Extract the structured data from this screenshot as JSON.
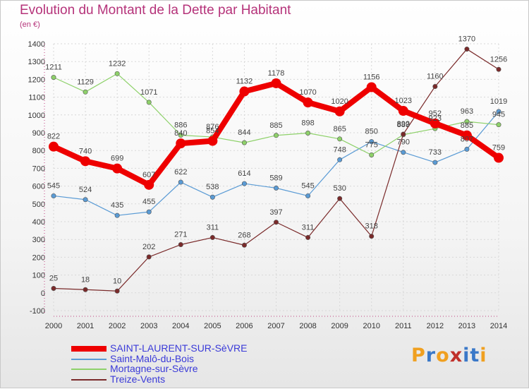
{
  "title": "Evolution du Montant de la Dette par Habitant",
  "unit_label": "(en €)",
  "logo": {
    "text": "Proxiti",
    "colors": [
      "#f0a020",
      "#3a78c8",
      "#f0a020",
      "#c0302a",
      "#3a78c8",
      "#3a78c8",
      "#f0a020"
    ]
  },
  "chart_data": {
    "type": "line",
    "title": "Evolution du Montant de la Dette par Habitant",
    "ylabel": "(en €)",
    "xlabel": "",
    "x": [
      2000,
      2001,
      2002,
      2003,
      2004,
      2005,
      2006,
      2007,
      2008,
      2009,
      2010,
      2011,
      2012,
      2013,
      2014
    ],
    "ylim": [
      -100,
      1400
    ],
    "yticks": [
      -100,
      0,
      100,
      200,
      300,
      400,
      500,
      600,
      700,
      800,
      900,
      1000,
      1100,
      1200,
      1300,
      1400
    ],
    "grid": true,
    "legend_position": "bottom-left",
    "series": [
      {
        "name": "SAINT-LAURENT-SUR-SèVRE",
        "color": "#ee0000",
        "emphasis": true,
        "values": [
          822,
          740,
          699,
          607,
          840,
          854,
          1132,
          1178,
          1070,
          1020,
          1156,
          1023,
          952,
          885,
          759
        ],
        "labels": [
          "822",
          "740",
          "699",
          "607",
          "840",
          "854",
          "1132",
          "1178",
          "1070",
          "1020",
          "1156",
          "1023",
          "952",
          "885",
          "759"
        ]
      },
      {
        "name": "Saint-Malô-du-Bois",
        "color": "#5a9bd5",
        "emphasis": false,
        "values": [
          545,
          524,
          435,
          455,
          622,
          538,
          614,
          589,
          545,
          748,
          850,
          790,
          733,
          807,
          1019
        ],
        "labels": [
          "545",
          "524",
          "435",
          "455",
          "622",
          "538",
          "614",
          "589",
          "545",
          "748",
          "850",
          "790",
          "733",
          "807",
          "1019"
        ]
      },
      {
        "name": "Mortagne-sur-Sèvre",
        "color": "#8ed16a",
        "emphasis": false,
        "values": [
          1211,
          1129,
          1232,
          1071,
          886,
          876,
          844,
          885,
          898,
          865,
          775,
          889,
          923,
          963,
          945
        ],
        "labels": [
          "1211",
          "1129",
          "1232",
          "1071",
          "886",
          "876",
          "844",
          "885",
          "898",
          "865",
          "775",
          "889",
          "923",
          "963",
          "945"
        ]
      },
      {
        "name": "Treize-Vents",
        "color": "#7a2a2a",
        "emphasis": false,
        "values": [
          25,
          18,
          10,
          202,
          271,
          311,
          268,
          397,
          311,
          530,
          318,
          892,
          1160,
          1370,
          1256
        ],
        "labels": [
          "25",
          "18",
          "10",
          "202",
          "271",
          "311",
          "268",
          "397",
          "311",
          "530",
          "318",
          "892",
          "1160",
          "1370",
          "1256"
        ]
      }
    ]
  }
}
